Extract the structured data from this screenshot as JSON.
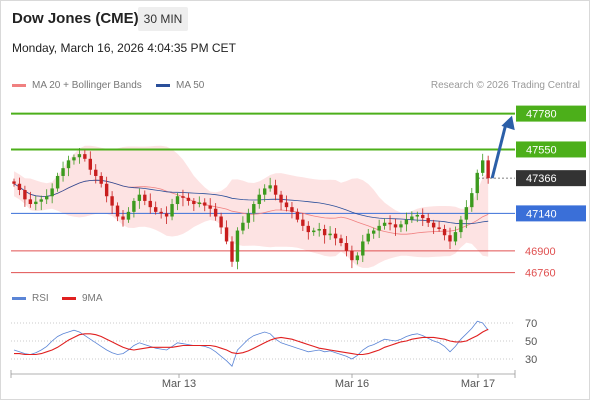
{
  "header": {
    "title": "Dow Jones (CME)",
    "timeframe": "30 MIN",
    "datetime": "Monday, March 16, 2026 4:04:35 PM CET",
    "credit": "Research © 2026 Trading Central"
  },
  "legend": {
    "bollinger_label": "MA 20 + Bollinger Bands",
    "bollinger_color": "#f08080",
    "ma50_label": "MA 50",
    "ma50_color": "#2a4f9a",
    "rsi_label": "RSI",
    "rsi_color": "#5b85d6",
    "rsi_ma_label": "9MA",
    "rsi_ma_color": "#e02020"
  },
  "chart_data": [
    {
      "type": "candlestick",
      "price_range": [
        46700,
        47880
      ],
      "levels": [
        {
          "label": "47780",
          "value": 47780,
          "style": "resistance",
          "color": "#4caf1a"
        },
        {
          "label": "47550",
          "value": 47550,
          "style": "resistance",
          "color": "#4caf1a"
        },
        {
          "label": "47366",
          "value": 47366,
          "style": "last-price",
          "color": "#333333"
        },
        {
          "label": "47140",
          "value": 47140,
          "style": "pivot",
          "color": "#3a6fd8"
        },
        {
          "label": "46900",
          "value": 46900,
          "style": "support",
          "color": "#e05050"
        },
        {
          "label": "46760",
          "value": 46760,
          "style": "support",
          "color": "#e05050"
        }
      ],
      "x_tick_labels": [
        "Mar 13",
        "Mar 16",
        "Mar 17"
      ],
      "forecast": {
        "from": 47366,
        "to": 47780,
        "color": "#2b5fa8"
      },
      "closes": [
        47330,
        47290,
        47230,
        47200,
        47215,
        47230,
        47250,
        47300,
        47380,
        47430,
        47480,
        47500,
        47520,
        47490,
        47420,
        47380,
        47330,
        47250,
        47190,
        47120,
        47100,
        47150,
        47220,
        47260,
        47220,
        47180,
        47150,
        47140,
        47120,
        47200,
        47250,
        47240,
        47220,
        47200,
        47210,
        47190,
        47170,
        47120,
        47050,
        46960,
        46830,
        47030,
        47080,
        47140,
        47200,
        47260,
        47300,
        47320,
        47260,
        47210,
        47180,
        47150,
        47100,
        47060,
        47020,
        47030,
        47040,
        47000,
        47010,
        46980,
        46950,
        46900,
        46840,
        46870,
        46960,
        47010,
        47030,
        47060,
        47080,
        47070,
        47050,
        47070,
        47100,
        47120,
        47130,
        47110,
        47080,
        47050,
        47040,
        47000,
        46960,
        47020,
        47100,
        47180,
        47270,
        47400,
        47480,
        47366
      ]
    },
    {
      "type": "line",
      "title": "RSI",
      "y_ticks": [
        70,
        50,
        30
      ],
      "series": [
        {
          "name": "RSI",
          "values": [
            40,
            38,
            36,
            35,
            37,
            40,
            44,
            50,
            55,
            58,
            60,
            62,
            60,
            56,
            52,
            48,
            44,
            40,
            37,
            35,
            36,
            40,
            45,
            48,
            46,
            44,
            42,
            41,
            40,
            44,
            48,
            47,
            46,
            45,
            45,
            44,
            42,
            38,
            33,
            28,
            22,
            40,
            46,
            52,
            56,
            58,
            60,
            58,
            52,
            48,
            46,
            44,
            42,
            40,
            38,
            39,
            40,
            38,
            39,
            37,
            35,
            33,
            30,
            34,
            40,
            44,
            46,
            49,
            52,
            51,
            50,
            52,
            55,
            57,
            58,
            56,
            53,
            50,
            48,
            44,
            38,
            44,
            52,
            58,
            64,
            72,
            70,
            62
          ]
        },
        {
          "name": "9MA",
          "values": [
            36,
            36,
            35,
            35,
            35,
            36,
            38,
            40,
            43,
            47,
            51,
            54,
            57,
            58,
            58,
            57,
            55,
            52,
            49,
            46,
            43,
            41,
            40,
            41,
            42,
            43,
            43,
            43,
            43,
            43,
            44,
            45,
            45,
            45,
            45,
            45,
            45,
            44,
            42,
            40,
            37,
            36,
            37,
            39,
            42,
            45,
            48,
            51,
            53,
            54,
            53,
            52,
            50,
            48,
            46,
            44,
            42,
            41,
            40,
            39,
            38,
            37,
            36,
            35,
            35,
            36,
            38,
            40,
            43,
            45,
            47,
            49,
            50,
            52,
            53,
            54,
            54,
            54,
            53,
            52,
            50,
            49,
            49,
            50,
            53,
            56,
            60,
            63
          ]
        }
      ]
    }
  ]
}
